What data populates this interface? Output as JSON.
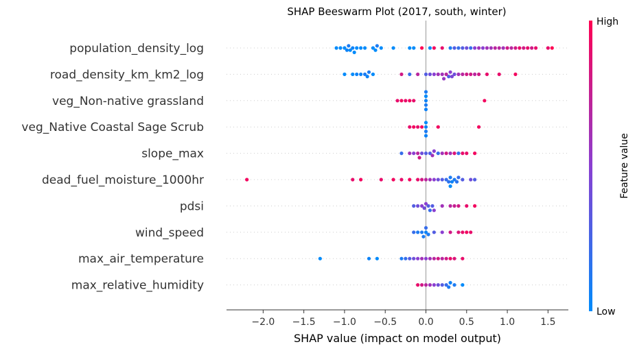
{
  "chart_data": {
    "type": "scatter",
    "subtype": "shap-beeswarm",
    "title": "SHAP Beeswarm Plot (2017, south, winter)",
    "xlabel": "SHAP value (impact on model output)",
    "xlim": [
      -2.45,
      1.75
    ],
    "xticks": [
      -2.0,
      -1.5,
      -1.0,
      -0.5,
      0.0,
      0.5,
      1.0,
      1.5
    ],
    "xtick_labels": [
      "−2.0",
      "−1.5",
      "−1.0",
      "−0.5",
      "0.0",
      "0.5",
      "1.0",
      "1.5"
    ],
    "colorbar": {
      "label": "Feature value",
      "high_label": "High",
      "low_label": "Low",
      "low_color": "#008bfb",
      "high_color": "#ff0052"
    },
    "features": [
      {
        "name": "population_density_log",
        "points": [
          [
            -1.1,
            0.0
          ],
          [
            -1.05,
            0.0
          ],
          [
            -1.0,
            0.0
          ],
          [
            -0.97,
            0.05
          ],
          [
            -0.95,
            0.1
          ],
          [
            -0.93,
            0.0
          ],
          [
            -0.9,
            0.05
          ],
          [
            -0.88,
            0.0
          ],
          [
            -0.85,
            0.0
          ],
          [
            -0.8,
            0.0
          ],
          [
            -0.75,
            0.0
          ],
          [
            -0.65,
            0.0
          ],
          [
            -0.62,
            0.0
          ],
          [
            -0.6,
            0.1
          ],
          [
            -0.55,
            0.0
          ],
          [
            -0.4,
            0.0
          ],
          [
            -0.2,
            0.0
          ],
          [
            -0.15,
            0.0
          ],
          [
            0.05,
            0.0
          ],
          [
            0.3,
            0.1
          ],
          [
            0.35,
            0.3
          ],
          [
            0.4,
            0.2
          ],
          [
            0.45,
            0.3
          ],
          [
            0.5,
            0.4
          ],
          [
            0.55,
            0.2
          ],
          [
            0.6,
            0.5
          ],
          [
            0.65,
            0.6
          ],
          [
            0.7,
            0.5
          ],
          [
            0.75,
            0.6
          ],
          [
            0.8,
            0.6
          ],
          [
            0.85,
            0.7
          ],
          [
            0.9,
            0.7
          ],
          [
            0.95,
            0.6
          ],
          [
            1.0,
            0.8
          ],
          [
            1.05,
            0.7
          ],
          [
            1.1,
            0.8
          ],
          [
            1.15,
            0.9
          ],
          [
            1.2,
            0.8
          ],
          [
            1.25,
            0.9
          ],
          [
            1.3,
            0.8
          ],
          [
            1.35,
            0.9
          ],
          [
            1.5,
            0.9
          ],
          [
            1.55,
            1.0
          ],
          [
            0.2,
            0.9
          ],
          [
            0.1,
            0.95
          ],
          [
            -0.05,
            1.0
          ]
        ]
      },
      {
        "name": "road_density_km_km2_log",
        "points": [
          [
            -1.0,
            0.0
          ],
          [
            -0.9,
            0.0
          ],
          [
            -0.85,
            0.05
          ],
          [
            -0.8,
            0.05
          ],
          [
            -0.75,
            0.1
          ],
          [
            -0.72,
            0.05
          ],
          [
            -0.7,
            0.1
          ],
          [
            -0.65,
            0.0
          ],
          [
            -0.3,
            0.8
          ],
          [
            -0.2,
            0.2
          ],
          [
            -0.1,
            0.7
          ],
          [
            0.0,
            0.3
          ],
          [
            0.05,
            0.4
          ],
          [
            0.1,
            0.5
          ],
          [
            0.15,
            0.6
          ],
          [
            0.2,
            0.6
          ],
          [
            0.25,
            0.7
          ],
          [
            0.3,
            0.5
          ],
          [
            0.35,
            0.4
          ],
          [
            0.4,
            0.6
          ],
          [
            0.45,
            0.7
          ],
          [
            0.5,
            0.8
          ],
          [
            0.55,
            0.8
          ],
          [
            0.6,
            0.7
          ],
          [
            0.65,
            0.8
          ],
          [
            0.75,
            0.9
          ],
          [
            0.9,
            0.9
          ],
          [
            1.1,
            0.95
          ],
          [
            0.28,
            0.3
          ],
          [
            0.32,
            0.45
          ],
          [
            0.22,
            0.55
          ]
        ]
      },
      {
        "name": "veg_Non-native grassland",
        "points": [
          [
            -0.35,
            0.9
          ],
          [
            -0.3,
            0.95
          ],
          [
            -0.25,
            0.9
          ],
          [
            -0.2,
            0.95
          ],
          [
            -0.15,
            0.9
          ],
          [
            0.0,
            0.05
          ],
          [
            0.0,
            0.1
          ],
          [
            0.0,
            0.0
          ],
          [
            0.0,
            0.05
          ],
          [
            0.0,
            0.1
          ],
          [
            0.72,
            0.95
          ]
        ]
      },
      {
        "name": "veg_Native Coastal Sage Scrub",
        "points": [
          [
            -0.2,
            0.9
          ],
          [
            -0.15,
            0.95
          ],
          [
            -0.1,
            0.9
          ],
          [
            -0.05,
            0.95
          ],
          [
            0.0,
            0.05
          ],
          [
            0.0,
            0.1
          ],
          [
            0.0,
            0.0
          ],
          [
            0.0,
            0.05
          ],
          [
            0.15,
            0.95
          ],
          [
            0.65,
            0.95
          ]
        ]
      },
      {
        "name": "slope_max",
        "points": [
          [
            -0.3,
            0.2
          ],
          [
            -0.2,
            0.6
          ],
          [
            -0.15,
            0.5
          ],
          [
            -0.1,
            0.7
          ],
          [
            -0.05,
            0.4
          ],
          [
            0.0,
            0.3
          ],
          [
            0.05,
            0.3
          ],
          [
            0.1,
            0.5
          ],
          [
            0.15,
            0.2
          ],
          [
            0.2,
            0.6
          ],
          [
            0.25,
            0.8
          ],
          [
            0.3,
            0.6
          ],
          [
            0.35,
            0.85
          ],
          [
            0.4,
            0.2
          ],
          [
            0.45,
            0.9
          ],
          [
            0.5,
            0.9
          ],
          [
            0.6,
            0.95
          ],
          [
            -0.08,
            0.8
          ],
          [
            0.08,
            0.6
          ]
        ]
      },
      {
        "name": "dead_fuel_moisture_1000hr",
        "points": [
          [
            -2.2,
            0.95
          ],
          [
            -0.9,
            0.9
          ],
          [
            -0.8,
            0.95
          ],
          [
            -0.55,
            0.9
          ],
          [
            -0.4,
            0.95
          ],
          [
            -0.3,
            0.9
          ],
          [
            -0.2,
            0.95
          ],
          [
            -0.1,
            0.9
          ],
          [
            -0.05,
            0.8
          ],
          [
            0.0,
            0.7
          ],
          [
            0.05,
            0.6
          ],
          [
            0.1,
            0.5
          ],
          [
            0.15,
            0.4
          ],
          [
            0.2,
            0.3
          ],
          [
            0.25,
            0.2
          ],
          [
            0.28,
            0.15
          ],
          [
            0.3,
            0.1
          ],
          [
            0.32,
            0.05
          ],
          [
            0.35,
            0.1
          ],
          [
            0.38,
            0.15
          ],
          [
            0.4,
            0.2
          ],
          [
            0.45,
            0.3
          ],
          [
            0.55,
            0.4
          ],
          [
            0.6,
            0.3
          ],
          [
            0.3,
            0.0
          ]
        ]
      },
      {
        "name": "pdsi",
        "points": [
          [
            -0.15,
            0.3
          ],
          [
            -0.1,
            0.4
          ],
          [
            -0.05,
            0.5
          ],
          [
            0.0,
            0.5
          ],
          [
            0.03,
            0.3
          ],
          [
            0.05,
            0.2
          ],
          [
            0.08,
            0.3
          ],
          [
            0.1,
            0.5
          ],
          [
            0.2,
            0.6
          ],
          [
            0.3,
            0.7
          ],
          [
            0.35,
            0.75
          ],
          [
            0.4,
            0.8
          ],
          [
            0.5,
            0.9
          ],
          [
            0.6,
            0.95
          ],
          [
            -0.02,
            0.4
          ]
        ]
      },
      {
        "name": "wind_speed",
        "points": [
          [
            -0.15,
            0.2
          ],
          [
            -0.1,
            0.1
          ],
          [
            -0.05,
            0.1
          ],
          [
            0.0,
            0.05
          ],
          [
            -0.03,
            0.1
          ],
          [
            0.0,
            0.2
          ],
          [
            0.03,
            0.1
          ],
          [
            0.1,
            0.3
          ],
          [
            0.2,
            0.5
          ],
          [
            0.3,
            0.8
          ],
          [
            0.4,
            0.85
          ],
          [
            0.45,
            0.9
          ],
          [
            0.5,
            0.95
          ],
          [
            0.55,
            0.9
          ]
        ]
      },
      {
        "name": "max_air_temperature",
        "points": [
          [
            -1.3,
            0.0
          ],
          [
            -0.7,
            0.05
          ],
          [
            -0.6,
            0.0
          ],
          [
            -0.3,
            0.1
          ],
          [
            -0.25,
            0.2
          ],
          [
            -0.2,
            0.3
          ],
          [
            -0.15,
            0.4
          ],
          [
            -0.1,
            0.5
          ],
          [
            -0.05,
            0.6
          ],
          [
            0.0,
            0.5
          ],
          [
            0.05,
            0.6
          ],
          [
            0.1,
            0.7
          ],
          [
            0.15,
            0.8
          ],
          [
            0.2,
            0.7
          ],
          [
            0.25,
            0.8
          ],
          [
            0.3,
            0.9
          ],
          [
            0.35,
            0.85
          ],
          [
            0.45,
            0.9
          ]
        ]
      },
      {
        "name": "max_relative_humidity",
        "points": [
          [
            -0.1,
            0.9
          ],
          [
            -0.05,
            0.8
          ],
          [
            0.0,
            0.7
          ],
          [
            0.05,
            0.6
          ],
          [
            0.1,
            0.5
          ],
          [
            0.15,
            0.4
          ],
          [
            0.2,
            0.3
          ],
          [
            0.25,
            0.2
          ],
          [
            0.28,
            0.1
          ],
          [
            0.3,
            0.05
          ],
          [
            0.35,
            0.1
          ],
          [
            0.45,
            0.0
          ]
        ]
      }
    ]
  }
}
